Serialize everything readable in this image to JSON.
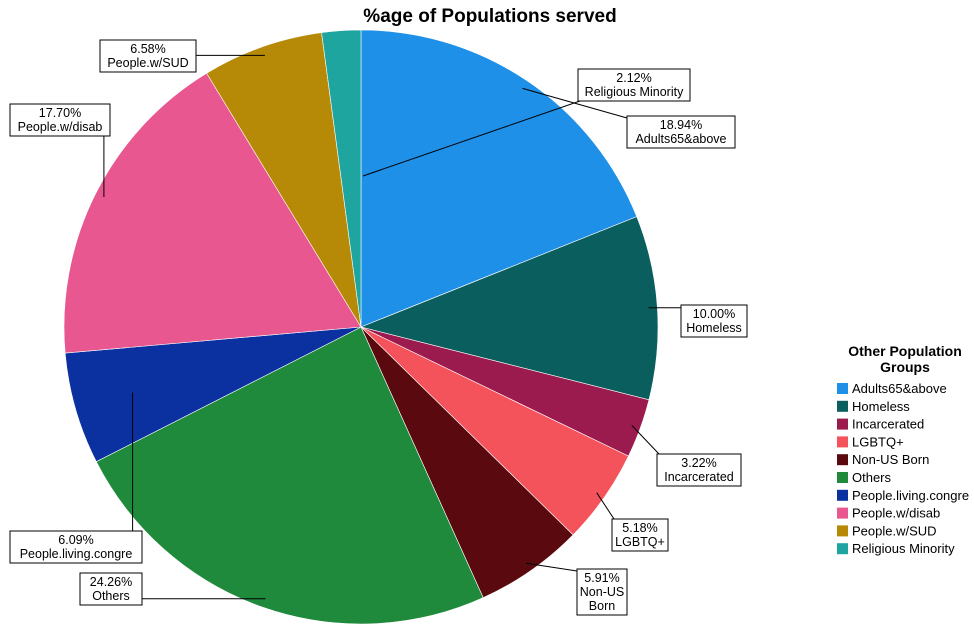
{
  "chart_data": {
    "type": "pie",
    "title": "%age of Populations served",
    "categories": [
      "Adults65&above",
      "Homeless",
      "Incarcerated",
      "LGBTQ+",
      "Non-US Born",
      "Others",
      "People.living.congre",
      "People.w/disab",
      "People.w/SUD",
      "Religious Minority"
    ],
    "values": [
      18.94,
      10.0,
      3.22,
      5.18,
      5.91,
      24.26,
      6.09,
      17.7,
      6.58,
      2.12
    ],
    "value_labels": [
      "18.94%",
      "10.00%",
      "3.22%",
      "5.18%",
      "5.91%",
      "24.26%",
      "6.09%",
      "17.70%",
      "6.58%",
      "2.12%"
    ],
    "slice_labels": [
      [
        "18.94%",
        "Adults65&above"
      ],
      [
        "10.00%",
        "Homeless"
      ],
      [
        "3.22%",
        "Incarcerated"
      ],
      [
        "5.18%",
        "LGBTQ+"
      ],
      [
        "5.91%",
        "Non-US",
        "Born"
      ],
      [
        "24.26%",
        "Others"
      ],
      [
        "6.09%",
        "People.living.congre"
      ],
      [
        "17.70%",
        "People.w/disab"
      ],
      [
        "6.58%",
        "People.w/SUD"
      ],
      [
        "2.12%",
        "Religious Minority"
      ]
    ],
    "colors": [
      "#1e90e8",
      "#0b5e5e",
      "#9b1b4f",
      "#f5535c",
      "#5a0a0e",
      "#208a3c",
      "#0b31a0",
      "#e8578f",
      "#b68a06",
      "#1fa5a0"
    ],
    "start_angle_deg": 0,
    "direction": "clockwise",
    "legend": {
      "title_lines": [
        "Other Population",
        "Groups"
      ],
      "position": "right"
    }
  }
}
